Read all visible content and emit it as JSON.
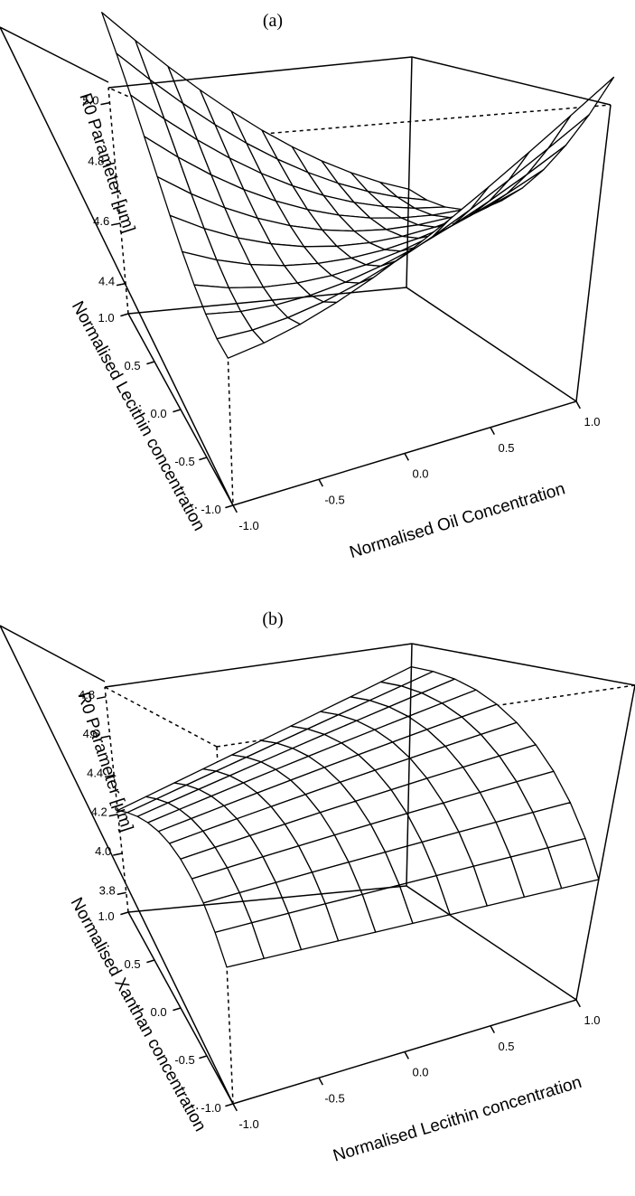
{
  "chart_data": [
    {
      "type": "surface",
      "panel_label": "(a)",
      "x_axis": {
        "label": "Normalised Oil Concentration",
        "ticks": [
          "-1.0",
          "-0.5",
          "0.0",
          "0.5",
          "1.0"
        ],
        "range": [
          -1,
          1
        ]
      },
      "y_axis": {
        "label": "Normalised Lecithin concentration",
        "ticks": [
          "-1.0",
          "-0.5",
          "0.0",
          "0.5",
          "1.0"
        ],
        "range": [
          -1,
          1
        ]
      },
      "z_axis": {
        "label": "R0 Parameter [μm]",
        "ticks": [
          "4.4",
          "4.6",
          "4.8",
          "5.0"
        ],
        "range": [
          4.3,
          5.05
        ]
      },
      "grid_size": 11,
      "model": {
        "z0": 4.65,
        "bx": -0.04,
        "by": 0.05,
        "cxx": 0.1,
        "cyy": 0.16,
        "cxy": -0.3
      }
    },
    {
      "type": "surface",
      "panel_label": "(b)",
      "x_axis": {
        "label": "Normalised Lecithin concentration",
        "ticks": [
          "-1.0",
          "-0.5",
          "0.0",
          "0.5",
          "1.0"
        ],
        "range": [
          -1,
          1
        ]
      },
      "y_axis": {
        "label": "Normalised Xanthan concentration",
        "ticks": [
          "-1.0",
          "-0.5",
          "0.0",
          "0.5",
          "1.0"
        ],
        "range": [
          -1,
          1
        ]
      },
      "z_axis": {
        "label": "R0 Parameter [μm]",
        "ticks": [
          "3.8",
          "4.0",
          "4.2",
          "4.4",
          "4.6",
          "4.8"
        ],
        "range": [
          3.7,
          4.85
        ]
      },
      "grid_size": 11,
      "model": {
        "z0": 4.48,
        "bx": 0.13,
        "by": 0.17,
        "cxx": 0.0,
        "cyy": -0.17,
        "cxy": 0.13
      }
    }
  ]
}
